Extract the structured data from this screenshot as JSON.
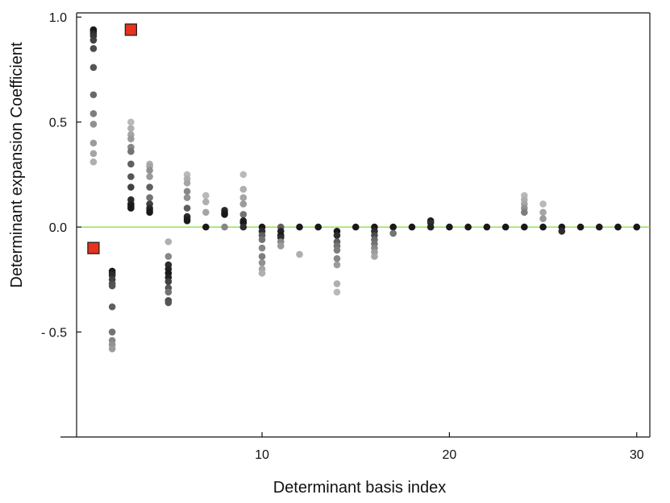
{
  "chart_data": {
    "type": "scatter",
    "title": "",
    "xlabel": "Determinant basis index",
    "ylabel": "Determinant expansion Coefficient",
    "xlim": [
      0.1,
      30.7
    ],
    "ylim": [
      -1.0,
      1.02
    ],
    "x_ticks": [
      10,
      20,
      30
    ],
    "x_tick_labels": [
      "10",
      "20",
      "30"
    ],
    "y_ticks": [
      1.0,
      0.5,
      0.0,
      -0.5
    ],
    "y_tick_labels": [
      "1.0",
      "0.5",
      "0.0",
      "- 0.5"
    ],
    "reference_line": {
      "y": 0,
      "color": "#7ddc3a"
    },
    "colors": {
      "axis": "#111111",
      "highlight": "#e8321c",
      "highlight_border": "#222222"
    },
    "series": [
      {
        "name": "coefficient samples",
        "points": [
          [
            1,
            0.94,
            0.95
          ],
          [
            1,
            0.93,
            0.95
          ],
          [
            1,
            0.92,
            0.85
          ],
          [
            1,
            0.91,
            0.8
          ],
          [
            1,
            0.89,
            0.75
          ],
          [
            1,
            0.85,
            0.7
          ],
          [
            1,
            0.76,
            0.65
          ],
          [
            1,
            0.63,
            0.55
          ],
          [
            1,
            0.54,
            0.45
          ],
          [
            1,
            0.49,
            0.35
          ],
          [
            1,
            0.4,
            0.3
          ],
          [
            1,
            0.35,
            0.25
          ],
          [
            1,
            0.31,
            0.2
          ],
          [
            2,
            -0.21,
            0.95
          ],
          [
            2,
            -0.22,
            0.9
          ],
          [
            2,
            -0.23,
            0.85
          ],
          [
            2,
            -0.25,
            0.75
          ],
          [
            2,
            -0.27,
            0.7
          ],
          [
            2,
            -0.28,
            0.65
          ],
          [
            2,
            -0.38,
            0.6
          ],
          [
            2,
            -0.5,
            0.5
          ],
          [
            2,
            -0.54,
            0.4
          ],
          [
            2,
            -0.56,
            0.35
          ],
          [
            2,
            -0.58,
            0.3
          ],
          [
            3,
            0.5,
            0.15
          ],
          [
            3,
            0.47,
            0.2
          ],
          [
            3,
            0.44,
            0.25
          ],
          [
            3,
            0.42,
            0.3
          ],
          [
            3,
            0.38,
            0.4
          ],
          [
            3,
            0.36,
            0.5
          ],
          [
            3,
            0.3,
            0.6
          ],
          [
            3,
            0.24,
            0.65
          ],
          [
            3,
            0.19,
            0.75
          ],
          [
            3,
            0.13,
            0.85
          ],
          [
            3,
            0.11,
            0.9
          ],
          [
            3,
            0.1,
            0.95
          ],
          [
            3,
            0.09,
            0.95
          ],
          [
            4,
            0.3,
            0.2
          ],
          [
            4,
            0.29,
            0.25
          ],
          [
            4,
            0.27,
            0.35
          ],
          [
            4,
            0.24,
            0.3
          ],
          [
            4,
            0.19,
            0.6
          ],
          [
            4,
            0.14,
            0.5
          ],
          [
            4,
            0.11,
            0.75
          ],
          [
            4,
            0.09,
            0.85
          ],
          [
            4,
            0.08,
            0.9
          ],
          [
            4,
            0.07,
            0.95
          ],
          [
            5,
            -0.07,
            0.2
          ],
          [
            5,
            -0.14,
            0.4
          ],
          [
            5,
            -0.18,
            0.85
          ],
          [
            5,
            -0.2,
            0.9
          ],
          [
            5,
            -0.22,
            0.95
          ],
          [
            5,
            -0.24,
            0.9
          ],
          [
            5,
            -0.26,
            0.75
          ],
          [
            5,
            -0.29,
            0.65
          ],
          [
            5,
            -0.31,
            0.5
          ],
          [
            5,
            -0.35,
            0.7
          ],
          [
            5,
            -0.36,
            0.65
          ],
          [
            6,
            0.25,
            0.15
          ],
          [
            6,
            0.23,
            0.2
          ],
          [
            6,
            0.21,
            0.25
          ],
          [
            6,
            0.17,
            0.4
          ],
          [
            6,
            0.14,
            0.35
          ],
          [
            6,
            0.09,
            0.6
          ],
          [
            6,
            0.05,
            0.85
          ],
          [
            6,
            0.04,
            0.9
          ],
          [
            6,
            0.03,
            0.95
          ],
          [
            7,
            0.15,
            0.15
          ],
          [
            7,
            0.12,
            0.2
          ],
          [
            7,
            0.07,
            0.25
          ],
          [
            7,
            0.0,
            0.95
          ],
          [
            8,
            0.08,
            0.85
          ],
          [
            8,
            0.07,
            0.9
          ],
          [
            8,
            0.06,
            0.95
          ],
          [
            8,
            0.0,
            0.4
          ],
          [
            9,
            0.25,
            0.15
          ],
          [
            9,
            0.18,
            0.2
          ],
          [
            9,
            0.14,
            0.25
          ],
          [
            9,
            0.11,
            0.3
          ],
          [
            9,
            0.06,
            0.5
          ],
          [
            9,
            0.03,
            0.9
          ],
          [
            9,
            0.02,
            0.95
          ],
          [
            9,
            0.0,
            0.85
          ],
          [
            10,
            0.0,
            0.95
          ],
          [
            10,
            -0.02,
            0.85
          ],
          [
            10,
            -0.04,
            0.6
          ],
          [
            10,
            -0.06,
            0.5
          ],
          [
            10,
            -0.1,
            0.4
          ],
          [
            10,
            -0.14,
            0.45
          ],
          [
            10,
            -0.17,
            0.35
          ],
          [
            10,
            -0.2,
            0.25
          ],
          [
            10,
            -0.22,
            0.2
          ],
          [
            11,
            0.0,
            0.6
          ],
          [
            11,
            -0.02,
            0.9
          ],
          [
            11,
            -0.04,
            0.95
          ],
          [
            11,
            -0.05,
            0.85
          ],
          [
            11,
            -0.07,
            0.4
          ],
          [
            11,
            -0.09,
            0.3
          ],
          [
            12,
            0.0,
            0.95
          ],
          [
            12,
            -0.13,
            0.2
          ],
          [
            13,
            0.0,
            0.95
          ],
          [
            14,
            -0.02,
            0.95
          ],
          [
            14,
            -0.04,
            0.85
          ],
          [
            14,
            -0.07,
            0.6
          ],
          [
            14,
            -0.09,
            0.5
          ],
          [
            14,
            -0.11,
            0.45
          ],
          [
            14,
            -0.15,
            0.4
          ],
          [
            14,
            -0.18,
            0.3
          ],
          [
            14,
            -0.27,
            0.2
          ],
          [
            14,
            -0.31,
            0.15
          ],
          [
            15,
            0.0,
            0.95
          ],
          [
            16,
            0.0,
            0.95
          ],
          [
            16,
            -0.02,
            0.85
          ],
          [
            16,
            -0.04,
            0.7
          ],
          [
            16,
            -0.06,
            0.55
          ],
          [
            16,
            -0.08,
            0.5
          ],
          [
            16,
            -0.1,
            0.4
          ],
          [
            16,
            -0.12,
            0.3
          ],
          [
            16,
            -0.14,
            0.25
          ],
          [
            17,
            0.0,
            0.95
          ],
          [
            17,
            -0.03,
            0.5
          ],
          [
            18,
            0.0,
            0.95
          ],
          [
            19,
            0.03,
            0.95
          ],
          [
            19,
            0.02,
            0.85
          ],
          [
            19,
            0.0,
            0.9
          ],
          [
            20,
            0.0,
            0.95
          ],
          [
            21,
            0.0,
            0.95
          ],
          [
            22,
            0.0,
            0.95
          ],
          [
            23,
            0.0,
            0.95
          ],
          [
            24,
            0.15,
            0.15
          ],
          [
            24,
            0.13,
            0.2
          ],
          [
            24,
            0.11,
            0.25
          ],
          [
            24,
            0.09,
            0.35
          ],
          [
            24,
            0.07,
            0.45
          ],
          [
            24,
            0.0,
            0.95
          ],
          [
            25,
            0.11,
            0.15
          ],
          [
            25,
            0.07,
            0.25
          ],
          [
            25,
            0.04,
            0.3
          ],
          [
            25,
            0.0,
            0.95
          ],
          [
            26,
            0.0,
            0.95
          ],
          [
            26,
            -0.02,
            0.85
          ],
          [
            27,
            0.0,
            0.95
          ],
          [
            28,
            0.0,
            0.95
          ],
          [
            29,
            0.0,
            0.95
          ],
          [
            30,
            0.0,
            0.95
          ]
        ]
      },
      {
        "name": "highlighted",
        "marker": "square",
        "points": [
          [
            3,
            0.94
          ],
          [
            1,
            -0.1
          ]
        ]
      }
    ]
  }
}
